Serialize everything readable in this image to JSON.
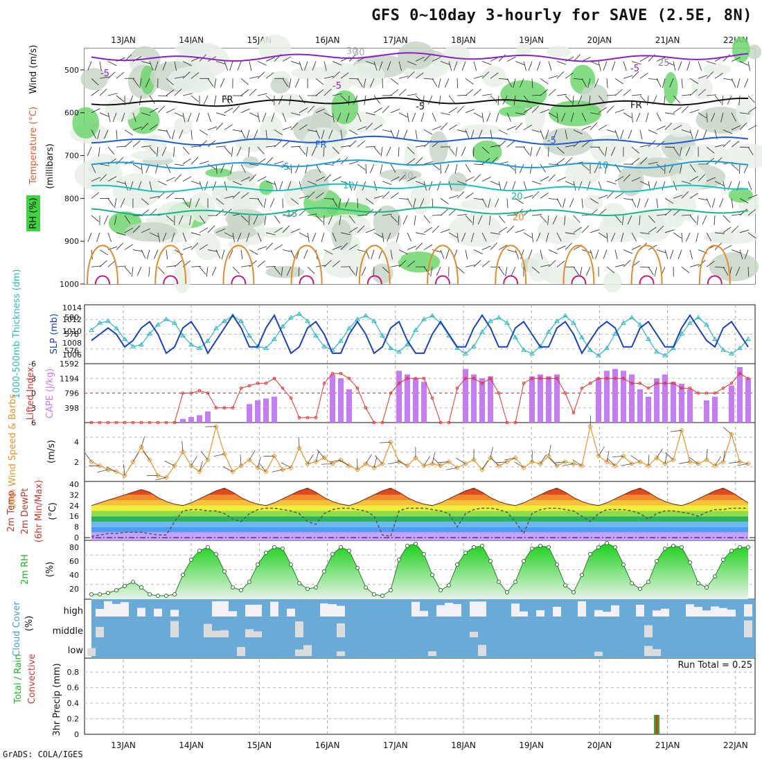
{
  "title": "GFS 0~10day 3-hourly for SAVE (2.5E, 8N)",
  "credit": "GrADS: COLA/IGES",
  "dates": [
    "13JAN",
    "14JAN",
    "15JAN",
    "16JAN",
    "17JAN",
    "18JAN",
    "19JAN",
    "20JAN",
    "21JAN",
    "22JAN"
  ],
  "chart_data": [
    {
      "type": "heatmap",
      "panel": "upper-air",
      "ylabel": "(millibars)",
      "legend": [
        "RH (%)",
        "Temperature (°C)",
        "Wind (m/s)"
      ],
      "yticks": [
        500,
        600,
        700,
        800,
        900,
        1000
      ],
      "ylim": [
        1000,
        450
      ],
      "contour_labels": [
        "-5",
        "-5",
        "-5",
        "-5",
        "FR",
        "FR",
        "FR",
        "-5",
        "-5",
        "10",
        "10",
        "-15",
        "20",
        "20",
        "25",
        "30",
        "30",
        "30"
      ],
      "isotherms": [
        {
          "name": "-5",
          "color": "#8a1fc6",
          "level": 470
        },
        {
          "name": "FR",
          "color": "#111111",
          "level": 575
        },
        {
          "name": "-5",
          "color": "#1e5ad8",
          "level": 665
        },
        {
          "name": "10",
          "color": "#1b9ad8",
          "level": 720
        },
        {
          "name": "15",
          "color": "#18c0c0",
          "level": 775
        },
        {
          "name": "20",
          "color": "#16b38a",
          "level": 830
        }
      ]
    },
    {
      "type": "line",
      "panel": "thickness-slp",
      "legend": [
        "1000-500mb Thickness (dm)",
        "SLP (mb)"
      ],
      "left_ticks": [
        "580",
        "578",
        "576"
      ],
      "right_ticks": [
        "1014",
        "1012",
        "1010",
        "1008",
        "1006"
      ],
      "series": [
        {
          "name": "SLP (mb)",
          "color": "#1a3fc0",
          "values": [
            1009,
            1010,
            1011,
            1010,
            1008,
            1009,
            1011,
            1012,
            1010,
            1007,
            1008,
            1011,
            1012,
            1010,
            1007,
            1009,
            1011,
            1013,
            1011,
            1008,
            1008,
            1011,
            1013,
            1010,
            1007,
            1008,
            1011,
            1012,
            1010,
            1007,
            1007,
            1010,
            1012,
            1010,
            1007,
            1008,
            1011,
            1012,
            1009,
            1007,
            1007,
            1010,
            1012,
            1010,
            1008,
            1008,
            1011,
            1013,
            1011,
            1008,
            1008,
            1011,
            1012,
            1010,
            1008,
            1008,
            1011,
            1012,
            1010,
            1007,
            1009,
            1011,
            1012,
            1011,
            1008,
            1008,
            1011,
            1012,
            1010,
            1008,
            1008,
            1011,
            1013,
            1011,
            1009,
            1008,
            1011,
            1012,
            1010,
            1008
          ]
        },
        {
          "name": "1000-500mb Thickness (dm)",
          "color": "#2ab7c0",
          "values": [
            578.6,
            579.4,
            579.6,
            578.8,
            577.6,
            576.8,
            577.0,
            578.2,
            579.2,
            579.8,
            579.4,
            578.0,
            577.0,
            576.6,
            577.4,
            578.8,
            579.6,
            580.2,
            579.6,
            578.0,
            576.8,
            576.6,
            577.6,
            579.0,
            580.0,
            580.4,
            579.6,
            578.0,
            576.8,
            576.4,
            577.4,
            578.8,
            579.8,
            580.2,
            579.6,
            578.0,
            576.6,
            576.2,
            577.0,
            578.6,
            579.8,
            580.2,
            579.4,
            578.0,
            576.6,
            576.0,
            576.8,
            578.4,
            579.6,
            580.0,
            579.4,
            577.8,
            576.4,
            576.0,
            576.8,
            578.4,
            579.6,
            580.2,
            579.4,
            577.8,
            576.4,
            575.8,
            576.6,
            578.2,
            579.4,
            580.0,
            579.2,
            577.6,
            576.2,
            575.8,
            576.6,
            578.2,
            579.4,
            580.0,
            579.2,
            577.6,
            576.4,
            576.0,
            576.6,
            577.6
          ]
        }
      ]
    },
    {
      "type": "bar",
      "panel": "cape-li",
      "legend": [
        "Lifted Index",
        "CAPE (J/kg)"
      ],
      "left_ticks": [
        "-6",
        "-3",
        "0",
        "3",
        "6"
      ],
      "right_ticks": [
        "1592",
        "1194",
        "796",
        "398"
      ],
      "series": [
        {
          "name": "CAPE (J/kg)",
          "color": "#c47cf2",
          "values": [
            0,
            0,
            0,
            0,
            0,
            0,
            0,
            0,
            0,
            0,
            0,
            100,
            150,
            200,
            300,
            0,
            0,
            0,
            0,
            500,
            600,
            650,
            700,
            0,
            0,
            0,
            0,
            0,
            0,
            1300,
            1200,
            900,
            0,
            0,
            0,
            0,
            0,
            1400,
            1300,
            1200,
            1100,
            0,
            0,
            0,
            0,
            1450,
            1300,
            1200,
            1250,
            0,
            0,
            0,
            0,
            1250,
            1300,
            1250,
            1300,
            0,
            0,
            0,
            0,
            1200,
            1400,
            1450,
            1400,
            1300,
            900,
            700,
            1200,
            1300,
            1100,
            1050,
            900,
            0,
            600,
            700,
            0,
            1000,
            1500,
            1200
          ]
        },
        {
          "name": "Lifted Index",
          "color": "#e23030",
          "values": [
            6,
            6,
            6,
            6,
            6,
            6,
            6,
            6,
            6,
            6,
            6,
            0,
            0,
            -0.5,
            0,
            3,
            3,
            3,
            -1,
            -1.5,
            -2,
            -2,
            -3,
            -1,
            1,
            5,
            5,
            5,
            -2,
            -4,
            -4,
            -3,
            -1,
            3,
            6,
            6,
            0,
            -2,
            -3,
            -3,
            -3,
            1,
            6,
            6,
            -1,
            -3,
            -3,
            -2,
            -3,
            0,
            6,
            6,
            -2,
            -3,
            -3,
            -3,
            -3,
            0,
            4,
            -1,
            -2,
            -3,
            -3,
            -3,
            -3,
            -2,
            -2,
            -1,
            -2,
            -2,
            -2,
            -1,
            -1,
            0,
            0,
            0,
            -1,
            -2,
            -4,
            -3
          ]
        }
      ]
    },
    {
      "type": "line",
      "panel": "wind",
      "legend": [
        "10m Wind Speed & Barbs",
        "(m/s)"
      ],
      "left_ticks": [
        "4",
        "2"
      ],
      "series": [
        {
          "name": "10m Wind Speed",
          "color": "#e0962a",
          "values": [
            2.0,
            1.6,
            1.2,
            1.0,
            0.6,
            2.0,
            3.5,
            2.2,
            0.6,
            0.4,
            1.6,
            3.0,
            1.6,
            1.0,
            2.2,
            5.6,
            2.8,
            1.0,
            1.6,
            2.2,
            1.4,
            1.0,
            2.6,
            1.2,
            1.4,
            3.4,
            1.8,
            2.0,
            2.4,
            1.8,
            2.2,
            1.6,
            1.2,
            1.8,
            1.4,
            1.8,
            4.0,
            2.0,
            1.6,
            2.4,
            1.6,
            1.8,
            1.6,
            2.0,
            1.4,
            1.8,
            2.2,
            1.2,
            2.4,
            1.6,
            2.0,
            2.4,
            1.4,
            2.0,
            1.8,
            2.6,
            1.6,
            2.0,
            1.8,
            1.6,
            5.6,
            2.6,
            2.0,
            1.6,
            2.6,
            1.8,
            2.0,
            1.6,
            2.4,
            1.8,
            2.2,
            5.2,
            2.0,
            1.8,
            2.2,
            1.6,
            2.0,
            4.8,
            2.0,
            1.8
          ]
        }
      ]
    },
    {
      "type": "area",
      "panel": "temp-dewpoint",
      "legend": [
        "2m Temp",
        "2m DewPt",
        "(6hr Min/Max)",
        "(°C)"
      ],
      "left_ticks": [
        "40",
        "32",
        "24",
        "16",
        "8",
        "0"
      ],
      "series": [
        {
          "name": "2m Temp",
          "color": "#c0392b",
          "values": [
            24,
            26,
            28,
            30,
            32,
            34,
            36,
            34,
            30,
            27,
            25,
            24,
            26,
            29,
            32,
            35,
            37,
            34,
            30,
            27,
            25,
            24,
            26,
            29,
            32,
            35,
            37,
            34,
            30,
            27,
            25,
            24,
            26,
            29,
            32,
            35,
            37,
            34,
            30,
            27,
            25,
            24,
            26,
            29,
            32,
            35,
            37,
            34,
            30,
            27,
            25,
            24,
            26,
            29,
            32,
            35,
            37,
            34,
            30,
            27,
            25,
            24,
            26,
            29,
            32,
            35,
            37,
            34,
            30,
            27,
            25,
            24,
            26,
            29,
            32,
            35,
            37,
            34,
            30,
            26
          ]
        },
        {
          "name": "2m DewPt",
          "color": "#666666",
          "values": [
            1,
            2,
            3,
            3,
            4,
            4,
            4,
            3,
            2,
            2,
            12,
            20,
            21,
            21,
            20,
            20,
            18,
            14,
            12,
            18,
            21,
            22,
            22,
            21,
            20,
            18,
            12,
            10,
            18,
            21,
            22,
            22,
            21,
            20,
            16,
            2,
            1,
            20,
            22,
            22,
            22,
            21,
            20,
            18,
            8,
            18,
            21,
            22,
            22,
            21,
            19,
            12,
            3,
            18,
            21,
            22,
            22,
            21,
            20,
            16,
            12,
            18,
            21,
            21,
            21,
            20,
            18,
            14,
            18,
            20,
            20,
            19,
            18,
            16,
            19,
            21,
            21,
            22,
            22,
            22
          ]
        }
      ]
    },
    {
      "type": "area",
      "panel": "rh",
      "legend": [
        "2m RH",
        "(%)"
      ],
      "left_ticks": [
        "80",
        "60",
        "40",
        "20"
      ],
      "series": [
        {
          "name": "2m RH",
          "color": "#1fd11f",
          "values": [
            12,
            12,
            14,
            18,
            24,
            30,
            22,
            12,
            10,
            10,
            12,
            40,
            62,
            75,
            80,
            70,
            45,
            22,
            18,
            30,
            55,
            72,
            80,
            78,
            55,
            28,
            20,
            22,
            45,
            70,
            80,
            75,
            50,
            22,
            12,
            10,
            18,
            62,
            82,
            85,
            70,
            40,
            18,
            25,
            55,
            72,
            80,
            82,
            60,
            30,
            15,
            30,
            60,
            78,
            82,
            80,
            55,
            25,
            15,
            40,
            70,
            80,
            86,
            80,
            55,
            28,
            20,
            30,
            60,
            78,
            82,
            80,
            58,
            28,
            22,
            38,
            62,
            75,
            80,
            80
          ]
        }
      ]
    },
    {
      "type": "heatmap",
      "panel": "cloud",
      "legend": [
        "Cloud Cover",
        "(%)"
      ],
      "row_labels": [
        "high",
        "middle",
        "low"
      ]
    },
    {
      "type": "bar",
      "panel": "precip",
      "legend": [
        "Total / Rain",
        "Convective",
        "3hr Precip (mm)"
      ],
      "left_ticks": [
        "0.8",
        "0.6",
        "0.4",
        "0.2",
        "0"
      ],
      "annotation": "Run Total = 0.25",
      "series": [
        {
          "name": "Total / Rain",
          "color": "#22b522",
          "values": [
            0,
            0,
            0,
            0,
            0,
            0,
            0,
            0,
            0,
            0,
            0,
            0,
            0,
            0,
            0,
            0,
            0,
            0,
            0,
            0,
            0,
            0,
            0,
            0,
            0,
            0,
            0,
            0,
            0,
            0,
            0,
            0,
            0,
            0,
            0,
            0,
            0,
            0,
            0,
            0,
            0,
            0,
            0,
            0,
            0,
            0,
            0,
            0,
            0,
            0,
            0,
            0,
            0,
            0,
            0,
            0,
            0,
            0,
            0,
            0,
            0,
            0,
            0,
            0,
            0,
            0,
            0,
            0,
            0.25,
            0,
            0,
            0,
            0,
            0,
            0,
            0,
            0,
            0,
            0,
            0
          ]
        },
        {
          "name": "Convective",
          "color": "#e23030",
          "values": [
            0,
            0,
            0,
            0,
            0,
            0,
            0,
            0,
            0,
            0,
            0,
            0,
            0,
            0,
            0,
            0,
            0,
            0,
            0,
            0,
            0,
            0,
            0,
            0,
            0,
            0,
            0,
            0,
            0,
            0,
            0,
            0,
            0,
            0,
            0,
            0,
            0,
            0,
            0,
            0,
            0,
            0,
            0,
            0,
            0,
            0,
            0,
            0,
            0,
            0,
            0,
            0,
            0,
            0,
            0,
            0,
            0,
            0,
            0,
            0,
            0,
            0,
            0,
            0,
            0,
            0,
            0,
            0,
            0.25,
            0,
            0,
            0,
            0,
            0,
            0,
            0,
            0,
            0,
            0,
            0
          ]
        }
      ]
    }
  ]
}
